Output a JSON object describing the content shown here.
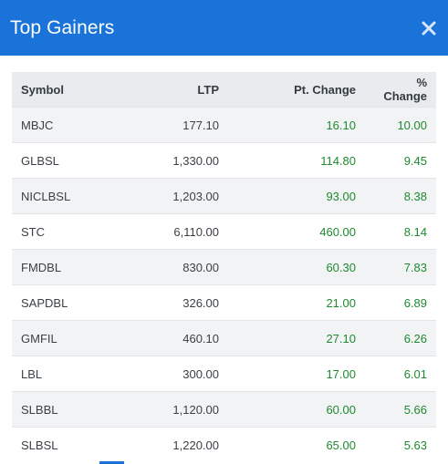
{
  "modal": {
    "title": "Top Gainers",
    "close_icon": "close-icon",
    "header_color": "#1a73d9"
  },
  "table": {
    "columns": [
      "Symbol",
      "LTP",
      "Pt. Change",
      "% Change"
    ],
    "rows": [
      {
        "symbol": "MBJC",
        "ltp": "177.10",
        "pt_change": "16.10",
        "pct_change": "10.00"
      },
      {
        "symbol": "GLBSL",
        "ltp": "1,330.00",
        "pt_change": "114.80",
        "pct_change": "9.45"
      },
      {
        "symbol": "NICLBSL",
        "ltp": "1,203.00",
        "pt_change": "93.00",
        "pct_change": "8.38"
      },
      {
        "symbol": "STC",
        "ltp": "6,110.00",
        "pt_change": "460.00",
        "pct_change": "8.14"
      },
      {
        "symbol": "FMDBL",
        "ltp": "830.00",
        "pt_change": "60.30",
        "pct_change": "7.83"
      },
      {
        "symbol": "SAPDBL",
        "ltp": "326.00",
        "pt_change": "21.00",
        "pct_change": "6.89"
      },
      {
        "symbol": "GMFIL",
        "ltp": "460.10",
        "pt_change": "27.10",
        "pct_change": "6.26"
      },
      {
        "symbol": "LBL",
        "ltp": "300.00",
        "pt_change": "17.00",
        "pct_change": "6.01"
      },
      {
        "symbol": "SLBBL",
        "ltp": "1,120.00",
        "pt_change": "60.00",
        "pct_change": "5.66"
      },
      {
        "symbol": "SLBSL",
        "ltp": "1,220.00",
        "pt_change": "65.00",
        "pct_change": "5.63"
      }
    ],
    "positive_color": "#1e8a2e"
  }
}
